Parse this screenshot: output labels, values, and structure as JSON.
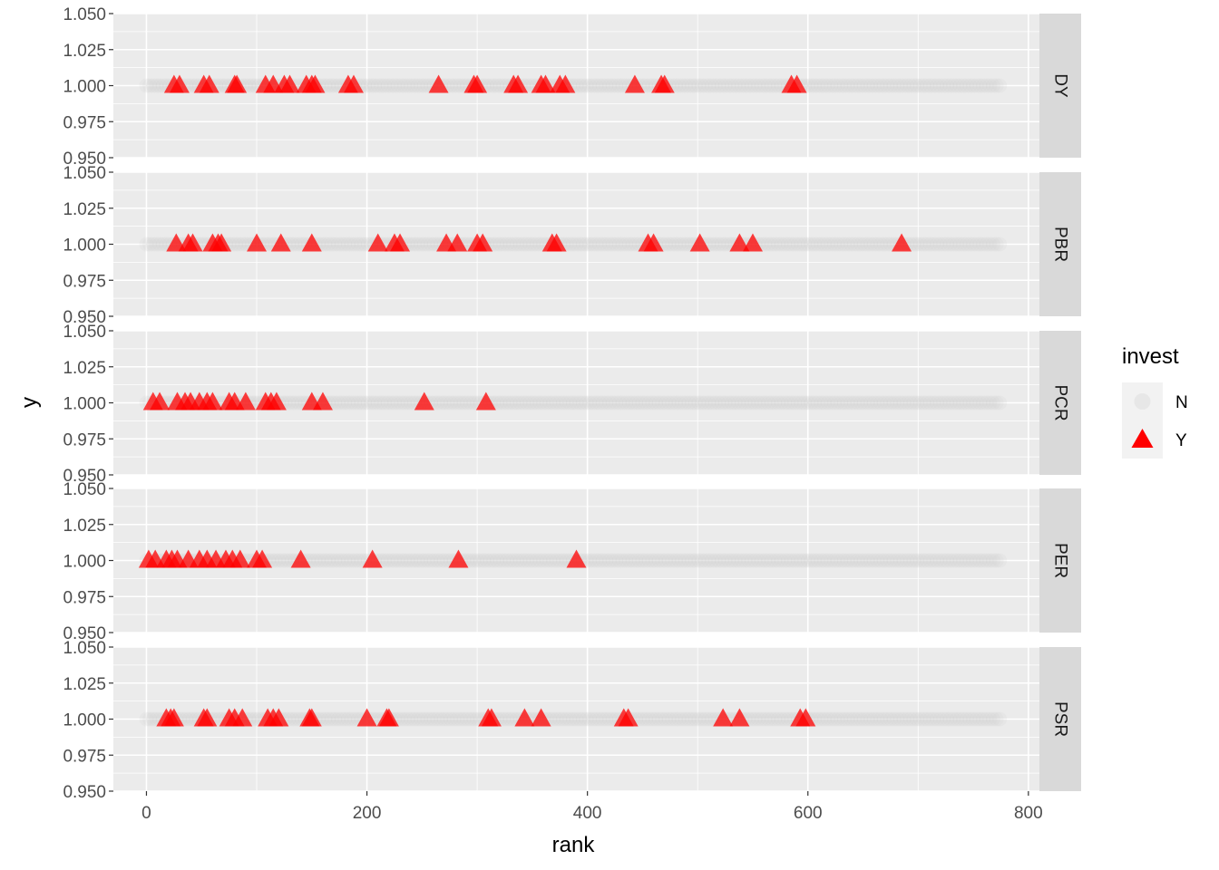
{
  "chart_data": {
    "type": "scatter",
    "facet_by": "strategy",
    "xlabel": "rank",
    "ylabel": "y",
    "xlim": [
      -30,
      810
    ],
    "ylim": [
      0.95,
      1.05
    ],
    "x_ticks": [
      0,
      200,
      400,
      600,
      800
    ],
    "x_tick_labels": [
      "0",
      "200",
      "400",
      "600",
      "800"
    ],
    "y_ticks": [
      0.95,
      0.975,
      1.0,
      1.025,
      1.05
    ],
    "y_tick_labels": [
      "0.950",
      "0.975",
      "1.000",
      "1.025",
      "1.050"
    ],
    "grid": true,
    "legend": {
      "title": "invest",
      "position": "right",
      "entries": [
        {
          "label": "N",
          "shape": "circle",
          "color": "#c8c8c8"
        },
        {
          "label": "Y",
          "shape": "triangle",
          "color": "#ff0000"
        }
      ]
    },
    "background_range": {
      "N_from": 0,
      "N_to": 775,
      "y": 1.0
    },
    "panels": [
      {
        "label": "DY",
        "y": 1.0,
        "Y_ranks": [
          25,
          30,
          52,
          57,
          80,
          82,
          108,
          115,
          125,
          130,
          145,
          150,
          153,
          183,
          188,
          265,
          297,
          300,
          333,
          337,
          358,
          362,
          375,
          380,
          443,
          467,
          470,
          585,
          590
        ]
      },
      {
        "label": "PBR",
        "y": 1.0,
        "Y_ranks": [
          27,
          38,
          42,
          60,
          65,
          68,
          100,
          122,
          150,
          210,
          225,
          230,
          272,
          282,
          300,
          305,
          368,
          372,
          455,
          460,
          502,
          538,
          550,
          685
        ]
      },
      {
        "label": "PCR",
        "y": 1.0,
        "Y_ranks": [
          6,
          12,
          28,
          35,
          40,
          48,
          55,
          60,
          75,
          80,
          90,
          108,
          113,
          118,
          150,
          160,
          252,
          308
        ]
      },
      {
        "label": "PER",
        "y": 1.0,
        "Y_ranks": [
          2,
          8,
          18,
          23,
          28,
          38,
          48,
          55,
          63,
          72,
          78,
          85,
          100,
          105,
          140,
          205,
          283,
          390
        ]
      },
      {
        "label": "PSR",
        "y": 1.0,
        "Y_ranks": [
          18,
          22,
          25,
          52,
          55,
          75,
          80,
          87,
          110,
          115,
          120,
          148,
          150,
          200,
          218,
          220,
          310,
          313,
          343,
          358,
          433,
          437,
          523,
          538,
          593,
          598
        ]
      }
    ]
  }
}
